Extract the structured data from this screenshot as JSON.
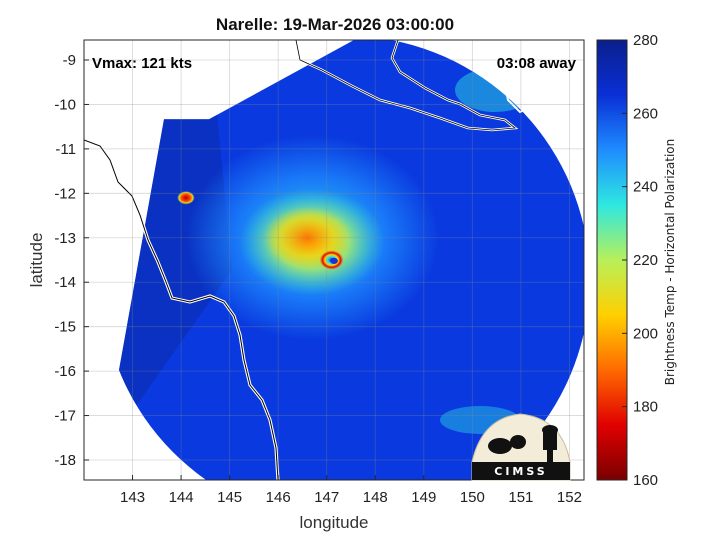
{
  "title": "Narelle: 19-Mar-2026 03:00:00",
  "annotations": {
    "vmax": "Vmax: 121 kts",
    "time_away": "03:08 away"
  },
  "colorbar": {
    "label": "Brightness Temp - Horizontal Polarization",
    "ticks": [
      "280",
      "260",
      "240",
      "220",
      "200",
      "180",
      "160"
    ],
    "colormap": [
      "#7a0000",
      "#e00000",
      "#ff6a00",
      "#ffd000",
      "#b8f05a",
      "#2ee8e0",
      "#1e8cff",
      "#0a2fd6",
      "#0a1f8c"
    ]
  },
  "logo": {
    "text": "CIMSS"
  },
  "chart_data": {
    "type": "heatmap",
    "title": "Narelle: 19-Mar-2026 03:00:00",
    "xlabel": "longitude",
    "ylabel": "latitude",
    "xlim": [
      142,
      152.3
    ],
    "ylim": [
      -18.45,
      -8.55
    ],
    "x_ticks": [
      143,
      144,
      145,
      146,
      147,
      148,
      149,
      150,
      151,
      152
    ],
    "y_ticks": [
      -9,
      -10,
      -11,
      -12,
      -13,
      -14,
      -15,
      -16,
      -17,
      -18
    ],
    "x_tick_labels": [
      "143",
      "144",
      "145",
      "146",
      "147",
      "148",
      "149",
      "150",
      "151",
      "152"
    ],
    "y_tick_labels": [
      "-9",
      "-10",
      "-11",
      "-12",
      "-13",
      "-14",
      "-15",
      "-16",
      "-17",
      "-18"
    ],
    "grid": true,
    "colorbar_range": [
      160,
      280
    ],
    "storm_center": {
      "lon": 147.1,
      "lat": -13.5
    },
    "background_temp": 270,
    "features": [
      {
        "name": "rain-shield",
        "lon": 146.7,
        "lat": -13.0,
        "rx_deg": 2.6,
        "ry_deg": 2.3,
        "temp": 238
      },
      {
        "name": "inner-core",
        "lon": 146.7,
        "lat": -13.1,
        "rx_deg": 1.5,
        "ry_deg": 1.2,
        "temp": 222
      },
      {
        "name": "eyewall-band",
        "lon": 146.6,
        "lat": -13.0,
        "rx_deg": 0.9,
        "ry_deg": 0.7,
        "temp": 200
      },
      {
        "name": "eyewall",
        "lon": 147.1,
        "lat": -13.5,
        "rx_deg": 0.25,
        "ry_deg": 0.22,
        "temp": 180
      },
      {
        "name": "eye",
        "lon": 147.15,
        "lat": -13.52,
        "rx_deg": 0.08,
        "ry_deg": 0.07,
        "temp": 265
      },
      {
        "name": "isolated-cell",
        "lon": 144.1,
        "lat": -12.1,
        "rx_deg": 0.18,
        "ry_deg": 0.15,
        "temp": 185
      }
    ]
  }
}
